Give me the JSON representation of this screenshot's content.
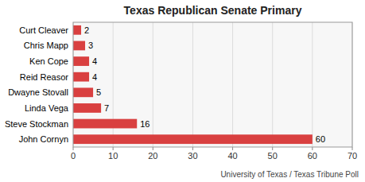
{
  "chart_data": {
    "type": "bar",
    "orientation": "horizontal",
    "title": "Texas Republican Senate Primary",
    "categories": [
      "John Cornyn",
      "Steve Stockman",
      "Linda Vega",
      "Dwayne Stovall",
      "Reid Reasor",
      "Ken Cope",
      "Chris Mapp",
      "Curt Cleaver"
    ],
    "values": [
      60,
      16,
      7,
      5,
      4,
      4,
      3,
      2
    ],
    "color": "#d94040",
    "xlim": [
      0,
      70
    ],
    "xticks": [
      0,
      10,
      20,
      30,
      40,
      50,
      60,
      70
    ],
    "grid": true,
    "data_labels": true,
    "annotations": [
      "University of Texas / Texas Tribune Poll"
    ]
  }
}
